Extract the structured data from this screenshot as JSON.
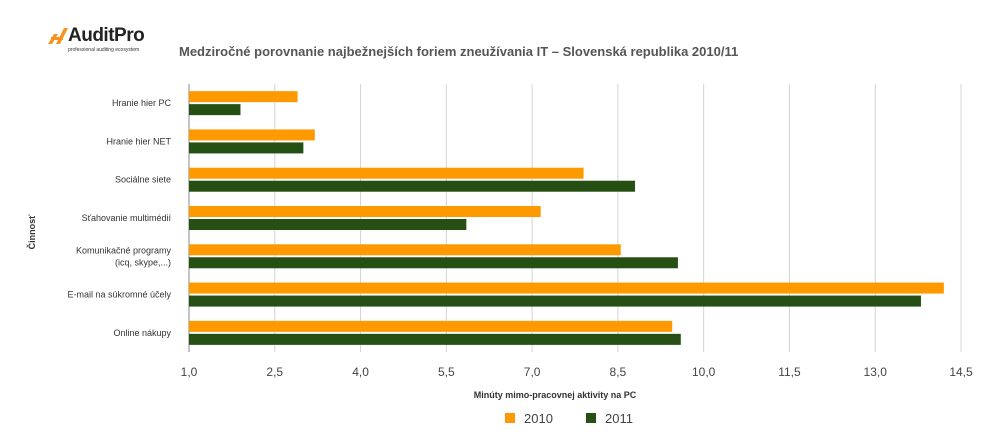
{
  "logo": {
    "name": "AuditPro",
    "tagline": "professional auditing ecosystem"
  },
  "chart_data": {
    "type": "bar",
    "orientation": "horizontal",
    "title": "Medziročné porovnanie najbežnejších foriem zneužívania IT – Slovenská republika 2010/11",
    "xlabel": "Minúty mimo-pracovnej aktivity na PC",
    "ylabel": "Činnosť",
    "categories": [
      [
        "Hranie hier PC"
      ],
      [
        "Hranie hier NET"
      ],
      [
        "Sociálne siete"
      ],
      [
        "Sťahovanie multimédií"
      ],
      [
        "Komunikačné programy",
        "(icq, skype,...)"
      ],
      [
        "E-mail na súkromné účely"
      ],
      [
        "Online nákupy"
      ]
    ],
    "series": [
      {
        "name": "2010",
        "color": "#FF9900",
        "values": [
          2.9,
          3.2,
          7.9,
          7.15,
          8.55,
          14.2,
          9.45
        ]
      },
      {
        "name": "2011",
        "color": "#264F14",
        "values": [
          1.9,
          3.0,
          8.8,
          5.85,
          9.55,
          13.8,
          9.6
        ]
      }
    ],
    "xlim": [
      1.0,
      14.5
    ],
    "xticks": [
      "1,0",
      "2,5",
      "4,0",
      "5,5",
      "7,0",
      "8,5",
      "10,0",
      "11,5",
      "13,0",
      "14,5"
    ],
    "grid": true,
    "legend": "bottom"
  }
}
